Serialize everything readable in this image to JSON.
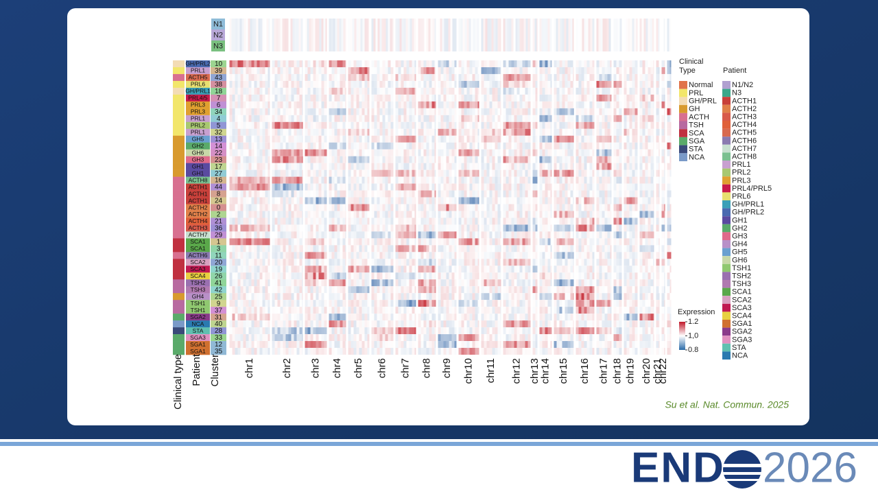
{
  "figure": {
    "reference": [
      {
        "label": "N1",
        "color": "#8fbcd8"
      },
      {
        "label": "N2",
        "color": "#b8a8d8"
      },
      {
        "label": "N3",
        "color": "#7ac080"
      }
    ],
    "rows": [
      {
        "patient": "GH/PRL2",
        "cluster": 10,
        "type": "GH/PRL",
        "color": "#4a6ab0"
      },
      {
        "patient": "PRL1",
        "cluster": 39,
        "type": "PRL",
        "color": "#c8a0d0"
      },
      {
        "patient": "ACTH5",
        "cluster": 43,
        "type": "ACTH",
        "color": "#d86a50"
      },
      {
        "patient": "PRL6",
        "cluster": 38,
        "type": "PRL",
        "color": "#e8e070"
      },
      {
        "patient": "GH/PRL1",
        "cluster": 18,
        "type": "GH/PRL",
        "color": "#3aa0b8"
      },
      {
        "patient": "PRL4/5",
        "cluster": 7,
        "type": "PRL",
        "color": "#c81a4a"
      },
      {
        "patient": "PRL3",
        "cluster": 6,
        "type": "PRL",
        "color": "#e0a030"
      },
      {
        "patient": "PRL3",
        "cluster": 34,
        "type": "PRL",
        "color": "#e0a030"
      },
      {
        "patient": "PRL1",
        "cluster": 4,
        "type": "PRL",
        "color": "#c8a0d0"
      },
      {
        "patient": "PRL2",
        "cluster": 5,
        "type": "PRL",
        "color": "#a8c870"
      },
      {
        "patient": "PRL1",
        "cluster": 32,
        "type": "PRL",
        "color": "#c8a0d0"
      },
      {
        "patient": "GH5",
        "cluster": 13,
        "type": "GH",
        "color": "#6aa0d0"
      },
      {
        "patient": "GH2",
        "cluster": 14,
        "type": "GH",
        "color": "#5aaa6a"
      },
      {
        "patient": "GH6",
        "cluster": 22,
        "type": "GH",
        "color": "#c8d8a8"
      },
      {
        "patient": "GH3",
        "cluster": 23,
        "type": "GH",
        "color": "#e06a8a"
      },
      {
        "patient": "GH1",
        "cluster": 17,
        "type": "GH",
        "color": "#5a4aa0"
      },
      {
        "patient": "GH1",
        "cluster": 27,
        "type": "GH",
        "color": "#5a4aa0"
      },
      {
        "patient": "ACTH8",
        "cluster": 16,
        "type": "ACTH",
        "color": "#7ac090"
      },
      {
        "patient": "ACTH1",
        "cluster": 44,
        "type": "ACTH",
        "color": "#c8403a"
      },
      {
        "patient": "ACTH1",
        "cluster": 8,
        "type": "ACTH",
        "color": "#c8403a"
      },
      {
        "patient": "ACTH1",
        "cluster": 24,
        "type": "ACTH",
        "color": "#c8403a"
      },
      {
        "patient": "ACTH2",
        "cluster": 0,
        "type": "ACTH",
        "color": "#e0804a"
      },
      {
        "patient": "ACTH2",
        "cluster": 2,
        "type": "ACTH",
        "color": "#e0804a"
      },
      {
        "patient": "ACTH4",
        "cluster": 21,
        "type": "ACTH",
        "color": "#e0603a"
      },
      {
        "patient": "ACTH3",
        "cluster": 36,
        "type": "ACTH",
        "color": "#d85a4a"
      },
      {
        "patient": "ACTH7",
        "cluster": 29,
        "type": "ACTH",
        "color": "#c8e0d0"
      },
      {
        "patient": "SCA1",
        "cluster": 1,
        "type": "SCA",
        "color": "#5aa84a"
      },
      {
        "patient": "SCA1",
        "cluster": 3,
        "type": "SCA",
        "color": "#5aa84a"
      },
      {
        "patient": "ACTH6",
        "cluster": 11,
        "type": "ACTH",
        "color": "#8a7ab0"
      },
      {
        "patient": "SCA2",
        "cluster": 20,
        "type": "SCA",
        "color": "#d8a0c0"
      },
      {
        "patient": "SCA3",
        "cluster": 19,
        "type": "SCA",
        "color": "#c01850"
      },
      {
        "patient": "SCA4",
        "cluster": 26,
        "type": "SCA",
        "color": "#e8d040"
      },
      {
        "patient": "TSH2",
        "cluster": 41,
        "type": "TSH",
        "color": "#9a70b0"
      },
      {
        "patient": "TSH3",
        "cluster": 42,
        "type": "TSH",
        "color": "#b07ab0"
      },
      {
        "patient": "GH4",
        "cluster": 25,
        "type": "GH",
        "color": "#b890c8"
      },
      {
        "patient": "TSH1",
        "cluster": 9,
        "type": "TSH",
        "color": "#90c870"
      },
      {
        "patient": "TSH1",
        "cluster": 37,
        "type": "TSH",
        "color": "#90c870"
      },
      {
        "patient": "SGA2",
        "cluster": 31,
        "type": "SGA",
        "color": "#8a3a8a"
      },
      {
        "patient": "NCA",
        "cluster": 40,
        "type": "NCA",
        "color": "#2a7ab0"
      },
      {
        "patient": "STA",
        "cluster": 28,
        "type": "STA",
        "color": "#60c0b0"
      },
      {
        "patient": "SGA3",
        "cluster": 33,
        "type": "SGA",
        "color": "#e090c0"
      },
      {
        "patient": "SGA1",
        "cluster": 12,
        "type": "SGA",
        "color": "#d07030"
      },
      {
        "patient": "SGA1",
        "cluster": 35,
        "type": "SGA",
        "color": "#d07030"
      }
    ],
    "chromosomes": [
      "chr1",
      "chr2",
      "chr3",
      "chr4",
      "chr5",
      "chr6",
      "chr7",
      "chr8",
      "chr9",
      "chr10",
      "chr11",
      "chr12",
      "chr13",
      "chr14",
      "chr15",
      "chr16",
      "chr17",
      "chr18",
      "chr19",
      "chr20",
      "chr21",
      "chr22"
    ],
    "axis_labels": [
      "Clinical type",
      "Patient",
      "Cluster"
    ],
    "clinical_legend": {
      "title": [
        "Clinical",
        "Type"
      ],
      "items": [
        {
          "label": "Normal",
          "color": "#e0734a"
        },
        {
          "label": "PRL",
          "color": "#f2e66b"
        },
        {
          "label": "GH/PRL",
          "color": "#f3dcb5"
        },
        {
          "label": "GH",
          "color": "#d89a2e"
        },
        {
          "label": "ACTH",
          "color": "#d87090"
        },
        {
          "label": "TSH",
          "color": "#b86aa0"
        },
        {
          "label": "SCA",
          "color": "#c03040"
        },
        {
          "label": "SGA",
          "color": "#5aaa6a"
        },
        {
          "label": "STA",
          "color": "#3a4a7a"
        },
        {
          "label": "NCA",
          "color": "#7a9ac8"
        }
      ]
    },
    "patient_legend": {
      "title": "Patient",
      "items": [
        {
          "label": "N1/N2",
          "color": "#b0a0d0"
        },
        {
          "label": "N3",
          "color": "#3aa88a"
        },
        {
          "label": "ACTH1",
          "color": "#c8403a"
        },
        {
          "label": "ACTH2",
          "color": "#e0804a"
        },
        {
          "label": "ACTH3",
          "color": "#d85a4a"
        },
        {
          "label": "ACTH4",
          "color": "#e0603a"
        },
        {
          "label": "ACTH5",
          "color": "#d86a50"
        },
        {
          "label": "ACTH6",
          "color": "#8a7ab0"
        },
        {
          "label": "ACTH7",
          "color": "#c8e0d0"
        },
        {
          "label": "ACTH8",
          "color": "#7ac090"
        },
        {
          "label": "PRL1",
          "color": "#c8a0d0"
        },
        {
          "label": "PRL2",
          "color": "#a8c870"
        },
        {
          "label": "PRL3",
          "color": "#e0a030"
        },
        {
          "label": "PRL4/PRL5",
          "color": "#c81a4a"
        },
        {
          "label": "PRL6",
          "color": "#e8e070"
        },
        {
          "label": "GH/PRL1",
          "color": "#3aa0b8"
        },
        {
          "label": "GH/PRL2",
          "color": "#4a6ab0"
        },
        {
          "label": "GH1",
          "color": "#5a4aa0"
        },
        {
          "label": "GH2",
          "color": "#5aaa6a"
        },
        {
          "label": "GH3",
          "color": "#e06a8a"
        },
        {
          "label": "GH4",
          "color": "#b890c8"
        },
        {
          "label": "GH5",
          "color": "#6aa0d0"
        },
        {
          "label": "GH6",
          "color": "#c8d8a8"
        },
        {
          "label": "TSH1",
          "color": "#90c870"
        },
        {
          "label": "TSH2",
          "color": "#9a70b0"
        },
        {
          "label": "TSH3",
          "color": "#b07ab0"
        },
        {
          "label": "SCA1",
          "color": "#5aa84a"
        },
        {
          "label": "SCA2",
          "color": "#d8a0c0"
        },
        {
          "label": "SCA3",
          "color": "#c01850"
        },
        {
          "label": "SCA4",
          "color": "#e8d040"
        },
        {
          "label": "SGA1",
          "color": "#d07030"
        },
        {
          "label": "SGA2",
          "color": "#8a3a8a"
        },
        {
          "label": "SGA3",
          "color": "#e090c0"
        },
        {
          "label": "STA",
          "color": "#60c0b0"
        },
        {
          "label": "NCA",
          "color": "#2a7ab0"
        }
      ]
    },
    "expression_legend": {
      "title": "Expression",
      "lim": [
        0.8,
        1.2
      ],
      "ticks": [
        1.2,
        {
          "value": 1.0,
          "label": "1,0"
        },
        0.8
      ],
      "low_color": "#2a6aa8",
      "high_color": "#c0182a"
    }
  },
  "citation": "Su et al. Nat. Commun. 2025",
  "logo": {
    "word": "END",
    "year": "2026"
  }
}
